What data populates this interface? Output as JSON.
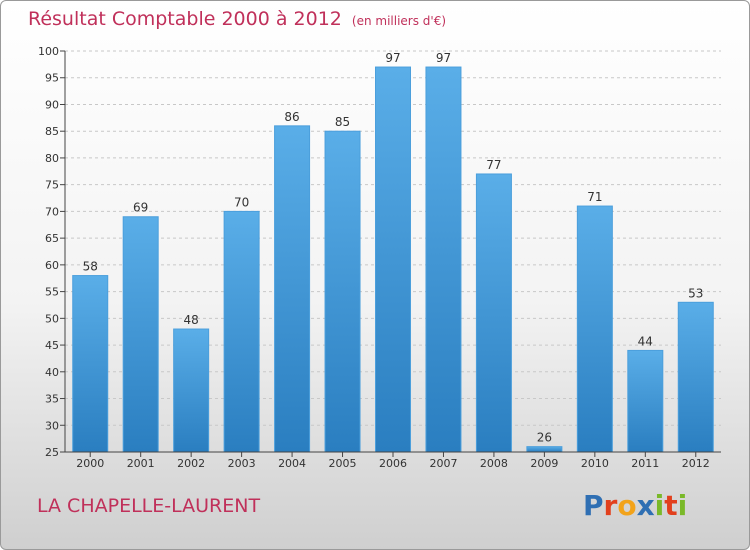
{
  "header": {
    "title": "Résultat Comptable 2000 à 2012",
    "unit": "(en milliers d'€)"
  },
  "footer": {
    "commune": "LA CHAPELLE-LAURENT",
    "brand": "Proxiti",
    "brand_letters": [
      {
        "ch": "P",
        "color": "#2f6fb3"
      },
      {
        "ch": "r",
        "color": "#e2401d"
      },
      {
        "ch": "o",
        "color": "#f2a31b"
      },
      {
        "ch": "x",
        "color": "#2f6fb3"
      },
      {
        "ch": "i",
        "color": "#7ab929"
      },
      {
        "ch": "t",
        "color": "#e2401d"
      },
      {
        "ch": "i",
        "color": "#7ab929"
      }
    ]
  },
  "colors": {
    "title": "#c0305a",
    "bar_top": "#5aaee8",
    "bar_bottom": "#2a7ec0",
    "grid": "#c8c8c8"
  },
  "chart_data": {
    "type": "bar",
    "title": "Résultat Comptable 2000 à 2012",
    "subtitle": "(en milliers d'€)",
    "xlabel": "",
    "ylabel": "",
    "categories": [
      "2000",
      "2001",
      "2002",
      "2003",
      "2004",
      "2005",
      "2006",
      "2007",
      "2008",
      "2009",
      "2010",
      "2011",
      "2012"
    ],
    "values": [
      58,
      69,
      48,
      70,
      86,
      85,
      97,
      97,
      77,
      26,
      71,
      44,
      53
    ],
    "ylim": [
      25,
      100
    ],
    "yticks": [
      25,
      30,
      35,
      40,
      45,
      50,
      55,
      60,
      65,
      70,
      75,
      80,
      85,
      90,
      95,
      100
    ],
    "grid": true,
    "legend": "none"
  }
}
